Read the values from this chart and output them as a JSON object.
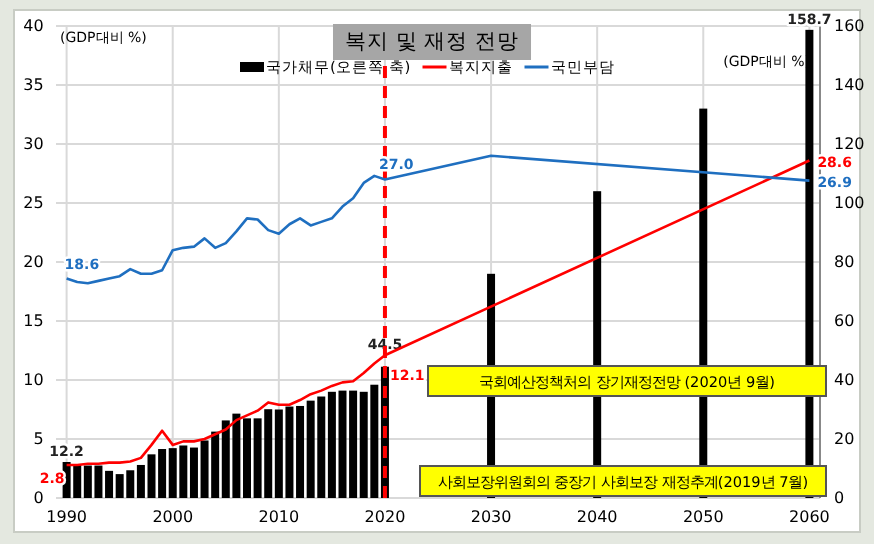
{
  "chart_data": {
    "type": "line",
    "title": "복지 및 재정 전망",
    "ylabel": "(GDP대비 %)",
    "y2label": "(GDP대비 %)",
    "xlim": [
      1989,
      2061
    ],
    "xticks": [
      1990,
      2000,
      2010,
      2020,
      2030,
      2040,
      2050,
      2060
    ],
    "ylim": [
      0,
      40
    ],
    "yticks": [
      0,
      5,
      10,
      15,
      20,
      25,
      30,
      35,
      40
    ],
    "y2lim": [
      0,
      160
    ],
    "y2ticks": [
      0,
      20,
      40,
      60,
      80,
      100,
      120,
      140,
      160
    ],
    "grid": true,
    "legend": "top",
    "series": [
      {
        "name": "국가채무(오른쪽 축)",
        "type": "bar",
        "axis": "y2",
        "color": "#000000",
        "x": [
          1990,
          1991,
          1992,
          1993,
          1994,
          1995,
          1996,
          1997,
          1998,
          1999,
          2000,
          2001,
          2002,
          2003,
          2004,
          2005,
          2006,
          2007,
          2008,
          2009,
          2010,
          2011,
          2012,
          2013,
          2014,
          2015,
          2016,
          2017,
          2018,
          2019,
          2020,
          2030,
          2040,
          2050,
          2060
        ],
        "values": [
          12.2,
          11.2,
          11,
          11,
          9.2,
          8.1,
          9.4,
          11.2,
          14.8,
          16.6,
          16.9,
          17.8,
          17.1,
          19.5,
          22.5,
          26.3,
          28.6,
          27,
          27,
          30.1,
          30,
          31,
          31.2,
          33,
          34.4,
          36,
          36.4,
          36.4,
          36,
          38.4,
          44.5,
          76,
          104,
          132,
          158.7
        ],
        "value_labels": [
          "12.2",
          null,
          null,
          null,
          null,
          null,
          null,
          null,
          null,
          null,
          null,
          null,
          null,
          null,
          null,
          null,
          null,
          null,
          null,
          null,
          null,
          null,
          null,
          null,
          null,
          null,
          null,
          null,
          null,
          null,
          "44.5",
          null,
          null,
          null,
          "158.7"
        ]
      },
      {
        "name": "복지지출",
        "color": "#ff0000",
        "x": [
          1990,
          1991,
          1992,
          1993,
          1994,
          1995,
          1996,
          1997,
          1998,
          1999,
          2000,
          2001,
          2002,
          2003,
          2004,
          2005,
          2006,
          2007,
          2008,
          2009,
          2010,
          2011,
          2012,
          2013,
          2014,
          2015,
          2016,
          2017,
          2018,
          2019,
          2020,
          2060
        ],
        "values": [
          2.8,
          2.8,
          2.9,
          2.9,
          3,
          3,
          3.1,
          3.4,
          4.5,
          5.7,
          4.5,
          4.8,
          4.8,
          5,
          5.4,
          5.8,
          6.6,
          7,
          7.4,
          8.1,
          7.9,
          7.9,
          8.3,
          8.8,
          9.1,
          9.5,
          9.8,
          9.9,
          10.6,
          11.4,
          12.1,
          28.6
        ],
        "value_labels": [
          "2.8",
          null,
          null,
          null,
          null,
          null,
          null,
          null,
          null,
          null,
          null,
          null,
          null,
          null,
          null,
          null,
          null,
          null,
          null,
          null,
          null,
          null,
          null,
          null,
          null,
          null,
          null,
          null,
          null,
          null,
          "12.1",
          "28.6"
        ]
      },
      {
        "name": "국민부담",
        "color": "#1f6fc0",
        "x": [
          1990,
          1991,
          1992,
          1993,
          1994,
          1995,
          1996,
          1997,
          1998,
          1999,
          2000,
          2001,
          2002,
          2003,
          2004,
          2005,
          2006,
          2007,
          2008,
          2009,
          2010,
          2011,
          2012,
          2013,
          2014,
          2015,
          2016,
          2017,
          2018,
          2019,
          2020,
          2030,
          2060
        ],
        "values": [
          18.6,
          18.3,
          18.2,
          18.4,
          18.6,
          18.8,
          19.4,
          19,
          19,
          19.3,
          21,
          21.2,
          21.3,
          22,
          21.2,
          21.6,
          22.6,
          23.7,
          23.6,
          22.7,
          22.4,
          23.2,
          23.7,
          23.1,
          23.4,
          23.7,
          24.7,
          25.4,
          26.7,
          27.3,
          27,
          29,
          26.9
        ],
        "value_labels": [
          "18.6",
          null,
          null,
          null,
          null,
          null,
          null,
          null,
          null,
          null,
          null,
          null,
          null,
          null,
          null,
          null,
          null,
          null,
          null,
          null,
          null,
          null,
          null,
          null,
          null,
          null,
          null,
          null,
          null,
          null,
          "27.0",
          null,
          "26.9"
        ]
      }
    ],
    "ref_lines": [
      {
        "axis": "x",
        "value": 2020,
        "color": "#ff0000",
        "line_style": "dashed"
      }
    ],
    "annotations": [
      "국회예산정책처의 장기재정전망 (2020년 9월)",
      "사회보장위원회의 중장기 사회보장 재정추계(2019년 7월)"
    ]
  }
}
